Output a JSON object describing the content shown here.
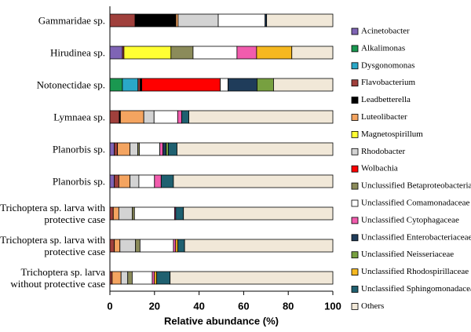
{
  "chart_data": {
    "type": "stacked-bar-horizontal",
    "x_label": "Relative abundance (%)",
    "categories": [
      "Gammaridae sp.",
      "Hirudinea sp.",
      "Notonectidae sp.",
      "Lymnaea sp.",
      "Planorbis sp.",
      "Planorbis sp.",
      "Trichoptera sp. larva with protective case",
      "Trichoptera sp. larva with protective case",
      "Trichoptera sp. larva without protective case"
    ],
    "xlim": [
      0,
      100
    ],
    "xticks": [
      0,
      20,
      40,
      60,
      80,
      100
    ],
    "series": [
      {
        "name": "Acinetobacter",
        "color": "#7f64b5",
        "values": [
          0,
          5.6,
          0,
          0,
          2,
          2,
          0,
          0,
          0
        ]
      },
      {
        "name": "Alkalimonas",
        "color": "#1a9850",
        "values": [
          0,
          0,
          5.6,
          0,
          0,
          0,
          0,
          0,
          0
        ]
      },
      {
        "name": "Dysgonomonas",
        "color": "#2aa8c8",
        "values": [
          0,
          0,
          7,
          0,
          0,
          0,
          0,
          0,
          0
        ]
      },
      {
        "name": "Flavobacterium",
        "color": "#a0403c",
        "values": [
          11.3,
          0.7,
          1,
          4.2,
          1.4,
          2,
          1.5,
          2,
          1
        ]
      },
      {
        "name": "Leadbetterella",
        "color": "#000000",
        "values": [
          18.3,
          0,
          0.7,
          0.5,
          0,
          0,
          0,
          0,
          0
        ]
      },
      {
        "name": "Luteolibacter",
        "color": "#f4a460",
        "values": [
          1,
          0,
          0,
          10.5,
          5.6,
          5,
          2.5,
          2.5,
          4
        ]
      },
      {
        "name": "Magnetospirillum",
        "color": "#ffff33",
        "values": [
          0,
          21.1,
          0,
          0,
          0,
          0,
          0,
          0,
          0
        ]
      },
      {
        "name": "Rhodobacter",
        "color": "#d3d3d3",
        "values": [
          18,
          0,
          0,
          4.6,
          3.5,
          4,
          6,
          7,
          3
        ]
      },
      {
        "name": "Wolbachia",
        "color": "#ff0000",
        "values": [
          0,
          0,
          35.2,
          0,
          0,
          0,
          0,
          0,
          0
        ]
      },
      {
        "name": "Unclussified Betaproteobacteria",
        "color": "#8b8b5a",
        "values": [
          0,
          9.9,
          0,
          0,
          0.7,
          0,
          1,
          2,
          2
        ]
      },
      {
        "name": "Unclassified Comamonadaceae",
        "color": "#ffffff",
        "values": [
          21,
          19.7,
          3.5,
          10.6,
          9.2,
          7,
          18,
          15,
          9
        ]
      },
      {
        "name": "Unclassified Cytophagaceae",
        "color": "#f15cad",
        "values": [
          0,
          8.8,
          0,
          1.8,
          1.4,
          3,
          0.5,
          1,
          1
        ]
      },
      {
        "name": "Unclassified Enterobacteriaceae",
        "color": "#1f3c5a",
        "values": [
          0.7,
          0,
          13,
          0,
          1.4,
          0,
          0,
          0,
          0
        ]
      },
      {
        "name": "Unclassified Neisseriaceae",
        "color": "#77a040",
        "values": [
          0,
          0,
          7.4,
          0,
          1,
          0,
          0,
          0,
          0
        ]
      },
      {
        "name": "Unclassified Rhodospirillaceae",
        "color": "#f5b820",
        "values": [
          0,
          15.8,
          0,
          0,
          0,
          0,
          0,
          1,
          1
        ]
      },
      {
        "name": "Unclassified Sphingomonadaceae",
        "color": "#1f6070",
        "values": [
          0,
          0,
          0,
          3.2,
          3.9,
          5.5,
          3.5,
          3,
          6
        ]
      },
      {
        "name": "Others",
        "color": "#f1e8d8",
        "values": [
          29.7,
          18.4,
          26.6,
          64.6,
          69.9,
          71.5,
          67,
          66.5,
          73
        ]
      }
    ]
  }
}
